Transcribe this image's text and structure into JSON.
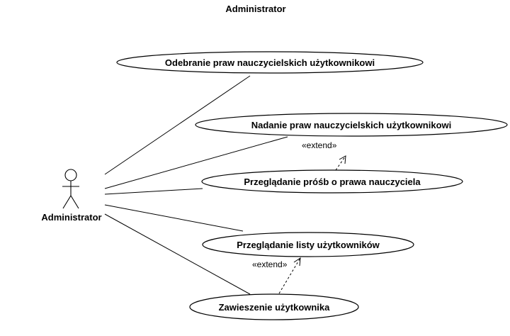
{
  "diagram": {
    "title": "Administrator",
    "actor": {
      "icon": "stick-figure-icon",
      "label": "Administrator"
    },
    "use_cases": [
      {
        "id": "uc1",
        "label": "Odebranie praw nauczycielskich użytkownikowi"
      },
      {
        "id": "uc2",
        "label": "Nadanie praw nauczycielskich użytkownikowi"
      },
      {
        "id": "uc3",
        "label": "Przeglądanie próśb o prawa nauczyciela"
      },
      {
        "id": "uc4",
        "label": "Przeglądanie listy użytkowników"
      },
      {
        "id": "uc5",
        "label": "Zawieszenie użytkownika"
      }
    ],
    "relations": [
      {
        "from": "uc3",
        "to": "uc2",
        "label": "«extend»"
      },
      {
        "from": "uc5",
        "to": "uc4",
        "label": "«extend»"
      }
    ]
  }
}
